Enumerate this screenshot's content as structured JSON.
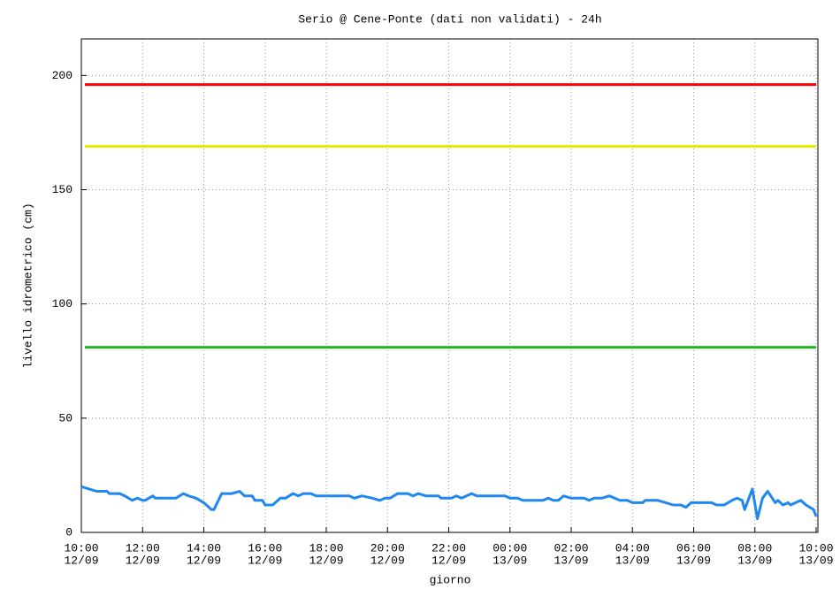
{
  "chart_data": {
    "type": "line",
    "title": "Serio @ Cene-Ponte (dati non validati) - 24h",
    "xlabel": "giorno",
    "ylabel": "livello idrometrico (cm)",
    "xlim": [
      "12/09 10:00",
      "13/09 10:00"
    ],
    "xticks": [
      {
        "value": "12/09 10:00",
        "label": [
          "10:00",
          "12/09"
        ]
      },
      {
        "value": "12/09 12:00",
        "label": [
          "12:00",
          "12/09"
        ]
      },
      {
        "value": "12/09 14:00",
        "label": [
          "14:00",
          "12/09"
        ]
      },
      {
        "value": "12/09 16:00",
        "label": [
          "16:00",
          "12/09"
        ]
      },
      {
        "value": "12/09 18:00",
        "label": [
          "18:00",
          "12/09"
        ]
      },
      {
        "value": "12/09 20:00",
        "label": [
          "20:00",
          "12/09"
        ]
      },
      {
        "value": "12/09 22:00",
        "label": [
          "22:00",
          "12/09"
        ]
      },
      {
        "value": "13/09 00:00",
        "label": [
          "00:00",
          "13/09"
        ]
      },
      {
        "value": "13/09 02:00",
        "label": [
          "02:00",
          "13/09"
        ]
      },
      {
        "value": "13/09 04:00",
        "label": [
          "04:00",
          "13/09"
        ]
      },
      {
        "value": "13/09 06:00",
        "label": [
          "06:00",
          "13/09"
        ]
      },
      {
        "value": "13/09 08:00",
        "label": [
          "08:00",
          "13/09"
        ]
      },
      {
        "value": "13/09 10:00",
        "label": [
          "10:00",
          "13/09"
        ]
      }
    ],
    "ylim": [
      0,
      216
    ],
    "yticks": [
      0,
      50,
      100,
      150,
      200
    ],
    "grid": true,
    "thresholds": [
      {
        "value": 196,
        "color": "#ff0000"
      },
      {
        "value": 169,
        "color": "#e8e800"
      },
      {
        "value": 81,
        "color": "#22b022"
      }
    ],
    "x": [
      "12/09 10:00",
      "12/09 10:30",
      "12/09 10:50",
      "12/09 10:55",
      "12/09 11:15",
      "12/09 11:25",
      "12/09 11:40",
      "12/09 11:50",
      "12/09 12:00",
      "12/09 12:05",
      "12/09 12:20",
      "12/09 12:25",
      "12/09 13:05",
      "12/09 13:20",
      "12/09 13:30",
      "12/09 13:45",
      "12/09 14:00",
      "12/09 14:15",
      "12/09 14:20",
      "12/09 14:35",
      "12/09 14:55",
      "12/09 15:10",
      "12/09 15:20",
      "12/09 15:35",
      "12/09 15:40",
      "12/09 15:55",
      "12/09 16:00",
      "12/09 16:15",
      "12/09 16:30",
      "12/09 16:40",
      "12/09 16:55",
      "12/09 17:05",
      "12/09 17:15",
      "12/09 17:30",
      "12/09 17:40",
      "12/09 18:45",
      "12/09 18:55",
      "12/09 19:10",
      "12/09 19:30",
      "12/09 19:45",
      "12/09 19:55",
      "12/09 20:05",
      "12/09 20:20",
      "12/09 20:40",
      "12/09 20:50",
      "12/09 21:00",
      "12/09 21:15",
      "12/09 21:40",
      "12/09 21:45",
      "12/09 22:05",
      "12/09 22:15",
      "12/09 22:25",
      "12/09 22:45",
      "12/09 22:55",
      "12/09 23:50",
      "13/09 00:00",
      "13/09 00:15",
      "13/09 00:25",
      "13/09 01:05",
      "13/09 01:15",
      "13/09 01:25",
      "13/09 01:35",
      "13/09 01:45",
      "13/09 02:00",
      "13/09 02:25",
      "13/09 02:35",
      "13/09 02:45",
      "13/09 03:00",
      "13/09 03:15",
      "13/09 03:25",
      "13/09 03:35",
      "13/09 03:50",
      "13/09 04:00",
      "13/09 04:20",
      "13/09 04:25",
      "13/09 04:50",
      "13/09 05:05",
      "13/09 05:20",
      "13/09 05:35",
      "13/09 05:45",
      "13/09 05:55",
      "13/09 06:10",
      "13/09 06:35",
      "13/09 06:45",
      "13/09 07:00",
      "13/09 07:15",
      "13/09 07:25",
      "13/09 07:35",
      "13/09 07:40",
      "13/09 07:55",
      "13/09 08:05",
      "13/09 08:15",
      "13/09 08:25",
      "13/09 08:40",
      "13/09 08:45",
      "13/09 08:55",
      "13/09 09:05",
      "13/09 09:10",
      "13/09 09:20",
      "13/09 09:30",
      "13/09 09:40",
      "13/09 09:55",
      "13/09 10:00"
    ],
    "series": [
      {
        "color": "#1e88f0",
        "values": [
          20,
          18,
          18,
          17,
          17,
          16,
          14,
          15,
          14,
          14,
          16,
          15,
          15,
          17,
          16,
          15,
          13,
          10,
          10,
          17,
          17,
          18,
          16,
          16,
          14,
          14,
          12,
          12,
          15,
          15,
          17,
          16,
          17,
          17,
          16,
          16,
          15,
          16,
          15,
          14,
          15,
          15,
          17,
          17,
          16,
          17,
          16,
          16,
          15,
          15,
          16,
          15,
          17,
          16,
          16,
          15,
          15,
          14,
          14,
          15,
          14,
          14,
          16,
          15,
          15,
          14,
          15,
          15,
          16,
          15,
          14,
          14,
          13,
          13,
          14,
          14,
          13,
          12,
          12,
          11,
          13,
          13,
          13,
          12,
          12,
          14,
          15,
          14,
          10,
          19,
          6,
          15,
          18,
          13,
          14,
          12,
          13,
          12,
          13,
          14,
          12,
          10,
          7
        ]
      }
    ]
  }
}
